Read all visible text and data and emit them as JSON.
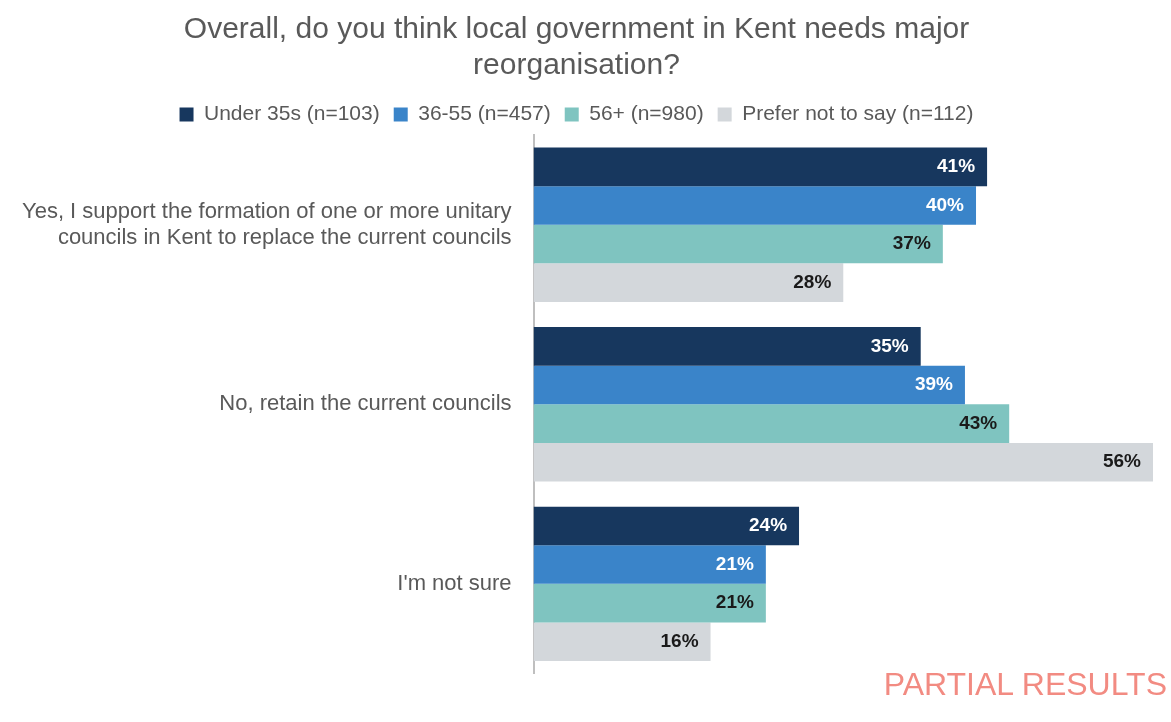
{
  "chart_data": {
    "type": "bar",
    "orientation": "horizontal",
    "title": "Overall, do you think local government in Kent needs major reorganisation?",
    "categories": [
      "Yes, I support the formation of one or more unitary councils in Kent to replace the current councils",
      "No, retain the current councils",
      "I'm not sure"
    ],
    "series": [
      {
        "name": "Under 35s (n=103)",
        "color": "#17375e",
        "values": [
          41,
          35,
          24
        ],
        "value_labels": [
          "41%",
          "35%",
          "24%"
        ]
      },
      {
        "name": "36-55 (n=457)",
        "color": "#3a84c9",
        "values": [
          40,
          39,
          21
        ],
        "value_labels": [
          "40%",
          "39%",
          "21%"
        ]
      },
      {
        "name": "56+ (n=980)",
        "color": "#7fc4c0",
        "values": [
          37,
          43,
          21
        ],
        "value_labels": [
          "37%",
          "43%",
          "21%"
        ]
      },
      {
        "name": "Prefer not to say (n=112)",
        "color": "#d3d7db",
        "values": [
          28,
          56,
          16
        ],
        "value_labels": [
          "28%",
          "56%",
          "16%"
        ]
      }
    ],
    "legend": "top",
    "tick_labels": "y",
    "annotations": [
      "PARTIAL RESULTS"
    ]
  }
}
